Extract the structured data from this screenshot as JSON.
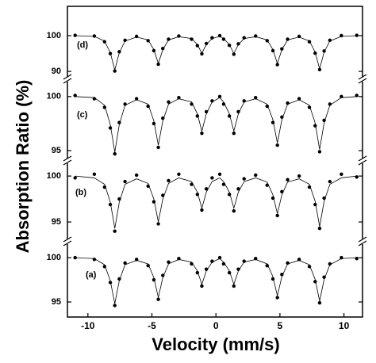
{
  "xlabel": "Velocity (mm/s)",
  "ylabel": "Absorption Ratio (%)",
  "chart_data": [
    {
      "type": "scatter",
      "label": "(d)",
      "xlim": [
        -11.6,
        11.45
      ],
      "ylim": [
        87.8,
        108.2
      ],
      "yticks": [
        100,
        90
      ],
      "x": [
        -11,
        -9.5,
        -8.7,
        -8.25,
        -7.9,
        -7.55,
        -7.1,
        -6.2,
        -5.3,
        -4.85,
        -4.5,
        -4.15,
        -3.7,
        -2.9,
        -1.9,
        -1.45,
        -1.1,
        -0.75,
        -0.3,
        0.3,
        0.6,
        1.05,
        1.4,
        1.75,
        2.2,
        3.1,
        4.0,
        4.45,
        4.8,
        5.15,
        5.6,
        6.5,
        7.3,
        7.75,
        8.1,
        8.45,
        8.9,
        9.8,
        11
      ],
      "series": [
        {
          "style": "points",
          "color": "#000000",
          "values": [
            100.1,
            99.9,
            98.3,
            95.0,
            90.1,
            95.5,
            98.7,
            99.8,
            98.6,
            95.8,
            92.0,
            96.4,
            99.0,
            99.9,
            99.0,
            97.2,
            94.9,
            97.8,
            99.4,
            100.0,
            99.0,
            97.3,
            94.8,
            97.7,
            99.4,
            99.9,
            98.6,
            95.8,
            91.9,
            96.3,
            99.0,
            99.8,
            98.3,
            95.1,
            90.5,
            95.7,
            98.7,
            100.0,
            100.1
          ]
        },
        {
          "style": "line",
          "color": "#000000",
          "values": [
            100,
            99.8,
            98.5,
            95.2,
            90.4,
            95.2,
            98.5,
            99.6,
            98.8,
            96.1,
            92.2,
            96.1,
            98.8,
            99.7,
            99.2,
            97.5,
            95.1,
            97.5,
            99.2,
            99.8,
            99.2,
            97.5,
            95.0,
            97.5,
            99.2,
            99.7,
            98.8,
            96.1,
            92.2,
            96.1,
            98.8,
            99.6,
            98.5,
            95.4,
            90.7,
            95.4,
            98.5,
            99.8,
            100
          ]
        }
      ]
    },
    {
      "type": "scatter",
      "label": "(c)",
      "xlim": [
        -11.6,
        11.45
      ],
      "ylim": [
        94.05,
        101.6
      ],
      "yticks": [
        100,
        95
      ],
      "x": [
        -11,
        -9.5,
        -8.7,
        -8.25,
        -7.9,
        -7.55,
        -7.1,
        -6.2,
        -5.3,
        -4.85,
        -4.5,
        -4.15,
        -3.7,
        -2.9,
        -1.9,
        -1.45,
        -1.1,
        -0.75,
        -0.3,
        0.3,
        0.6,
        1.05,
        1.4,
        1.75,
        2.2,
        3.1,
        4.0,
        4.45,
        4.8,
        5.15,
        5.6,
        6.5,
        7.3,
        7.75,
        8.1,
        8.45,
        8.9,
        9.8,
        11
      ],
      "series": [
        {
          "style": "points",
          "color": "#000000",
          "values": [
            100.1,
            99.8,
            99.0,
            97.1,
            94.7,
            97.6,
            99.3,
            99.8,
            99.1,
            97.5,
            95.3,
            98.0,
            99.5,
            99.9,
            99.3,
            98.2,
            96.6,
            98.6,
            99.6,
            100.0,
            99.3,
            98.2,
            96.6,
            98.6,
            99.6,
            99.9,
            99.1,
            97.6,
            95.5,
            98.1,
            99.4,
            99.8,
            99.0,
            97.3,
            94.9,
            97.8,
            99.3,
            100.0,
            100.1
          ]
        },
        {
          "style": "line",
          "color": "#000000",
          "values": [
            100,
            99.9,
            99.2,
            97.4,
            94.85,
            97.4,
            99.2,
            99.7,
            99.3,
            97.75,
            95.5,
            97.75,
            99.3,
            99.8,
            99.5,
            98.4,
            96.8,
            98.4,
            99.5,
            99.9,
            99.5,
            98.4,
            96.8,
            98.4,
            99.5,
            99.8,
            99.3,
            97.85,
            95.7,
            97.85,
            99.3,
            99.7,
            99.2,
            97.55,
            95.1,
            97.55,
            99.2,
            99.9,
            100
          ]
        }
      ]
    },
    {
      "type": "scatter",
      "label": "(b)",
      "xlim": [
        -11.6,
        11.45
      ],
      "ylim": [
        92.85,
        101.65
      ],
      "yticks": [
        100,
        95
      ],
      "x": [
        -11,
        -9.5,
        -8.7,
        -8.25,
        -7.9,
        -7.55,
        -7.1,
        -6.2,
        -5.3,
        -4.85,
        -4.5,
        -4.15,
        -3.7,
        -2.9,
        -1.9,
        -1.45,
        -1.1,
        -0.75,
        -0.3,
        0.3,
        0.6,
        1.05,
        1.4,
        1.75,
        2.2,
        3.1,
        4.0,
        4.45,
        4.8,
        5.15,
        5.6,
        6.5,
        7.3,
        7.75,
        8.1,
        8.45,
        8.9,
        9.8,
        11
      ],
      "series": [
        {
          "style": "points",
          "color": "#000000",
          "values": [
            99.8,
            100.2,
            98.8,
            96.9,
            94.0,
            97.5,
            99.4,
            100.1,
            98.9,
            97.2,
            94.8,
            97.9,
            99.5,
            100.2,
            99.1,
            98.0,
            96.3,
            98.6,
            99.8,
            100.2,
            99.1,
            98.0,
            96.2,
            98.6,
            99.7,
            100.1,
            99.0,
            97.6,
            95.7,
            98.3,
            99.6,
            100.0,
            98.8,
            96.9,
            94.3,
            97.6,
            99.4,
            100.2,
            99.9
          ]
        },
        {
          "style": "line",
          "color": "#000000",
          "values": [
            100,
            99.8,
            99.1,
            97.15,
            94.3,
            97.15,
            99.1,
            99.7,
            99.2,
            97.5,
            95.0,
            97.5,
            99.2,
            99.8,
            99.4,
            98.25,
            96.5,
            98.25,
            99.4,
            99.8,
            99.4,
            98.25,
            96.5,
            98.25,
            99.4,
            99.8,
            99.35,
            97.95,
            95.9,
            97.95,
            99.35,
            99.7,
            99.1,
            97.25,
            94.5,
            97.25,
            99.1,
            99.8,
            100
          ]
        }
      ]
    },
    {
      "type": "scatter",
      "label": "(a)",
      "xlim": [
        -11.6,
        11.45
      ],
      "ylim": [
        93.3,
        101.8
      ],
      "yticks": [
        100,
        95
      ],
      "xticks": [
        -10,
        -5,
        0,
        5,
        10
      ],
      "x": [
        -11,
        -9.5,
        -8.7,
        -8.25,
        -7.9,
        -7.55,
        -7.1,
        -6.2,
        -5.3,
        -4.85,
        -4.5,
        -4.15,
        -3.7,
        -2.9,
        -1.9,
        -1.45,
        -1.1,
        -0.75,
        -0.3,
        0.3,
        0.6,
        1.05,
        1.4,
        1.75,
        2.2,
        3.1,
        4.0,
        4.45,
        4.8,
        5.15,
        5.6,
        6.5,
        7.3,
        7.75,
        8.1,
        8.45,
        8.9,
        9.8,
        11
      ],
      "series": [
        {
          "style": "points",
          "color": "#000000",
          "values": [
            100.0,
            99.8,
            99.0,
            97.2,
            94.6,
            97.6,
            99.4,
            99.8,
            99.1,
            97.5,
            95.3,
            98.0,
            99.5,
            99.9,
            99.3,
            98.3,
            96.8,
            98.7,
            99.6,
            100.0,
            99.3,
            98.3,
            96.8,
            98.7,
            99.6,
            99.9,
            99.1,
            97.6,
            95.5,
            98.1,
            99.4,
            99.8,
            99.0,
            97.3,
            94.9,
            97.8,
            99.3,
            100.0,
            99.9
          ]
        },
        {
          "style": "line",
          "color": "#000000",
          "values": [
            100,
            99.9,
            99.2,
            97.4,
            94.8,
            97.4,
            99.2,
            99.7,
            99.3,
            97.75,
            95.5,
            97.75,
            99.3,
            99.8,
            99.5,
            98.5,
            97.0,
            98.5,
            99.5,
            99.9,
            99.5,
            98.5,
            97.0,
            98.5,
            99.5,
            99.8,
            99.3,
            97.85,
            95.7,
            97.85,
            99.3,
            99.7,
            99.2,
            97.55,
            95.1,
            97.55,
            99.2,
            99.9,
            100
          ]
        }
      ]
    }
  ]
}
